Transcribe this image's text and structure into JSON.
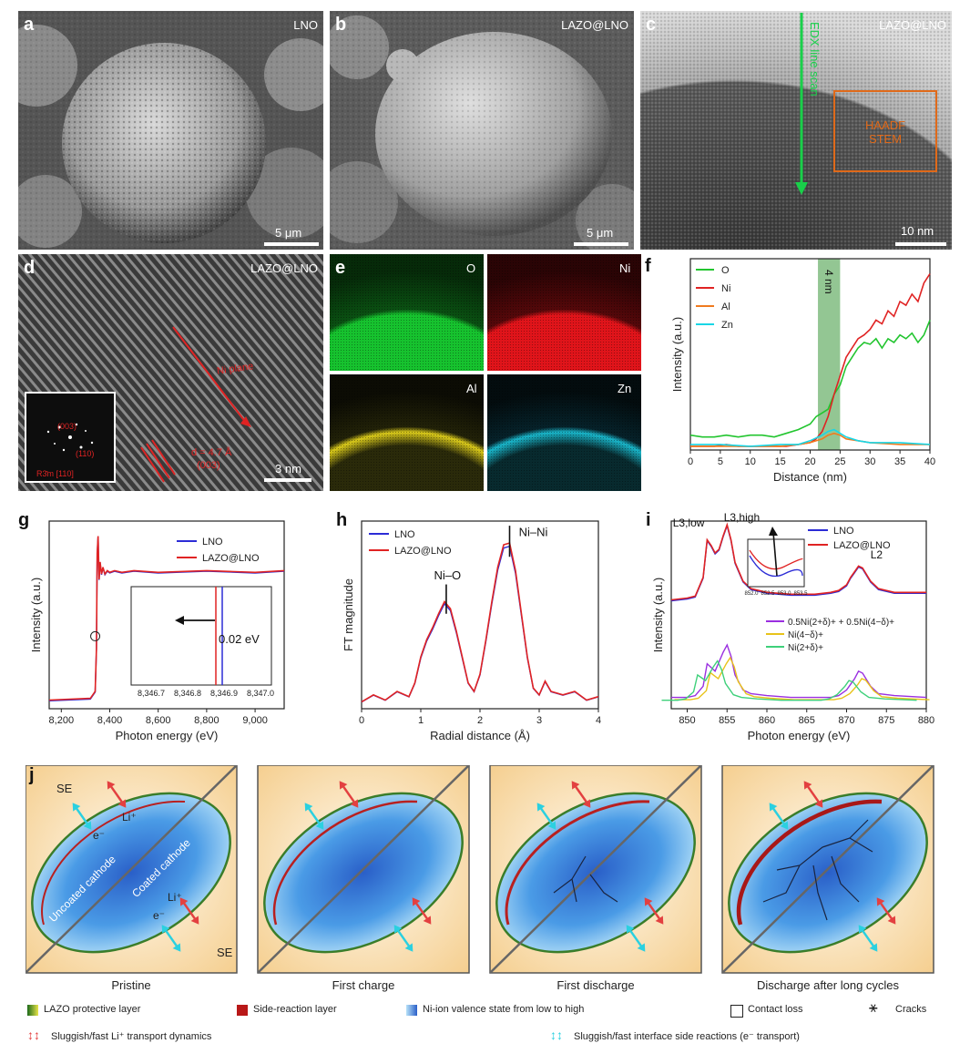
{
  "panels": {
    "a": {
      "letter": "a",
      "label": "LNO",
      "scale": "5 μm"
    },
    "b": {
      "letter": "b",
      "label": "LAZO@LNO",
      "scale": "5 μm"
    },
    "c": {
      "letter": "c",
      "label": "LAZO@LNO",
      "scale": "10 nm",
      "line_scan": "EDX line scan",
      "box": "HAADF\nSTEM"
    },
    "d": {
      "letter": "d",
      "label": "LAZO@LNO",
      "scale": "3 nm",
      "direction": "Ni plane",
      "dspacing": "d = 4.7 Å",
      "plane": "(003)",
      "fft1": "(003)",
      "fft2": "(110)",
      "zone": "R3̄m [110]"
    },
    "e": {
      "letter": "e",
      "maps": [
        {
          "el": "O",
          "color": "#1fcf3a"
        },
        {
          "el": "Ni",
          "color": "#e2121a"
        },
        {
          "el": "Al",
          "color": "#d8c81a"
        },
        {
          "el": "Zn",
          "color": "#1bbcd2"
        }
      ]
    }
  },
  "chart_data": [
    {
      "panel": "f",
      "type": "line",
      "xlabel": "Distance (nm)",
      "ylabel": "Intensity (a.u.)",
      "xlim": [
        0,
        40
      ],
      "xticks": [
        0,
        5,
        10,
        15,
        20,
        25,
        30,
        35,
        40
      ],
      "band": {
        "from": 21.3,
        "to": 25,
        "label": "4 nm"
      },
      "series": [
        {
          "name": "O",
          "color": "#22c52f",
          "x": [
            0,
            2,
            4,
            6,
            8,
            10,
            12,
            14,
            16,
            18,
            20,
            21,
            22,
            23,
            24,
            25,
            26,
            27,
            28,
            29,
            30,
            31,
            32,
            33,
            34,
            35,
            36,
            37,
            38,
            39,
            40
          ],
          "y": [
            0.08,
            0.07,
            0.07,
            0.08,
            0.07,
            0.08,
            0.08,
            0.07,
            0.09,
            0.11,
            0.14,
            0.18,
            0.2,
            0.22,
            0.3,
            0.35,
            0.45,
            0.5,
            0.55,
            0.58,
            0.57,
            0.6,
            0.55,
            0.6,
            0.58,
            0.62,
            0.6,
            0.63,
            0.58,
            0.62,
            0.7
          ]
        },
        {
          "name": "Ni",
          "color": "#e02323",
          "x": [
            0,
            2,
            4,
            6,
            8,
            10,
            12,
            14,
            16,
            18,
            20,
            21,
            22,
            23,
            24,
            25,
            26,
            27,
            28,
            29,
            30,
            31,
            32,
            33,
            34,
            35,
            36,
            37,
            38,
            39,
            40
          ],
          "y": [
            0.02,
            0.02,
            0.02,
            0.03,
            0.02,
            0.02,
            0.02,
            0.02,
            0.02,
            0.03,
            0.04,
            0.06,
            0.1,
            0.18,
            0.3,
            0.4,
            0.5,
            0.55,
            0.6,
            0.62,
            0.65,
            0.7,
            0.68,
            0.75,
            0.72,
            0.8,
            0.78,
            0.84,
            0.8,
            0.9,
            0.95
          ]
        },
        {
          "name": "Al",
          "color": "#f07b1f",
          "x": [
            0,
            5,
            10,
            15,
            18,
            20,
            22,
            23,
            24,
            25,
            26,
            28,
            30,
            35,
            40
          ],
          "y": [
            0.02,
            0.02,
            0.02,
            0.02,
            0.03,
            0.04,
            0.06,
            0.08,
            0.09,
            0.08,
            0.06,
            0.05,
            0.04,
            0.03,
            0.03
          ]
        },
        {
          "name": "Zn",
          "color": "#19d6e6",
          "x": [
            0,
            5,
            10,
            15,
            18,
            20,
            22,
            23,
            24,
            25,
            26,
            28,
            30,
            35,
            40
          ],
          "y": [
            0.03,
            0.03,
            0.02,
            0.03,
            0.03,
            0.05,
            0.08,
            0.1,
            0.11,
            0.09,
            0.07,
            0.05,
            0.04,
            0.04,
            0.03
          ]
        }
      ]
    },
    {
      "panel": "g",
      "type": "line",
      "xlabel": "Photon energy (eV)",
      "ylabel": "Intensity (a.u.)",
      "xlim": [
        8150,
        9120
      ],
      "xticks": [
        8200,
        8400,
        8600,
        8800,
        9000
      ],
      "xticklabels": [
        "8,200",
        "8,400",
        "8,600",
        "8,800",
        "9,000"
      ],
      "legend": [
        "LNO",
        "LAZO@LNO"
      ],
      "colors": [
        "#2c2cd6",
        "#e02323"
      ],
      "inset": {
        "xticklabels": [
          "8,346.7",
          "8,346.8",
          "8,346.9",
          "8,347.0"
        ],
        "shift": "0.02 eV"
      }
    },
    {
      "panel": "h",
      "type": "line",
      "xlabel": "Radial distance (Å)",
      "ylabel": "FT magnitude",
      "xlim": [
        0,
        4
      ],
      "xticks": [
        0,
        1,
        2,
        3,
        4
      ],
      "legend": [
        "LNO",
        "LAZO@LNO"
      ],
      "colors": [
        "#2c2cd6",
        "#e02323"
      ],
      "annotations": [
        "Ni–O",
        "Ni–Ni"
      ]
    },
    {
      "panel": "i",
      "type": "line",
      "xlabel": "Photon energy (eV)",
      "ylabel": "Intensity (a.u.)",
      "xlim": [
        848,
        880
      ],
      "xticks": [
        850,
        855,
        860,
        865,
        870,
        875,
        880
      ],
      "legend": [
        "LNO",
        "LAZO@LNO"
      ],
      "colors": [
        "#2c2cd6",
        "#e02323"
      ],
      "labels": [
        "L3,low",
        "L3,high",
        "L2"
      ],
      "sim_legend": [
        "0.5Ni(2+δ)+ + 0.5Ni(4−δ)+",
        "Ni(4−δ)+",
        "Ni(2+δ)+"
      ],
      "sim_colors": [
        "#9a2fe0",
        "#e8c31a",
        "#3ed07a"
      ],
      "inset_ticks": [
        "852.0",
        "852.5",
        "853.0",
        "853.5"
      ]
    }
  ],
  "panel_j": {
    "letter": "j",
    "captions": [
      "Pristine",
      "First charge",
      "First discharge",
      "Discharge after long cycles"
    ],
    "labels": {
      "se": "SE",
      "li": "Li⁺",
      "e": "e⁻",
      "uncoated": "Uncoated cathode",
      "coated": "Coated cathode"
    },
    "legend": [
      "LAZO protective layer",
      "Side-reaction layer",
      "Ni-ion valence state from low to high",
      "Contact loss",
      "Cracks",
      "Sluggish/fast Li⁺ transport dynamics",
      "Sluggish/fast interface side reactions (e⁻ transport)"
    ]
  }
}
